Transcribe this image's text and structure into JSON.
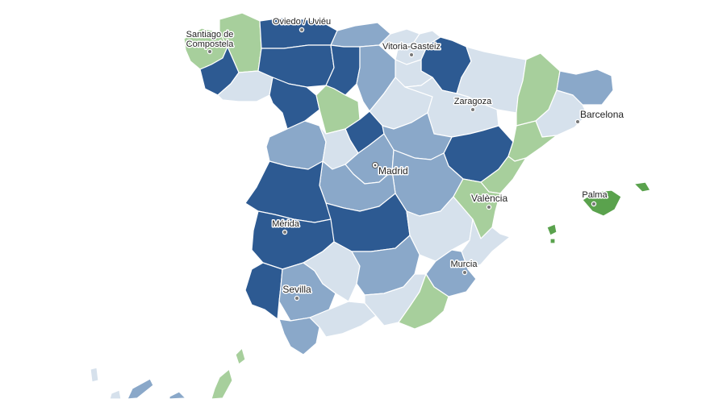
{
  "map": {
    "legend_colors": {
      "dark_blue": "#2d5a92",
      "mid_blue": "#8aa8c9",
      "light_blue": "#d6e1ec",
      "light_green": "#a7cf9c",
      "dark_green": "#5aa24d"
    },
    "cities": [
      {
        "name": "Oviedo / Uviéu",
        "icon": "city-dot-icon"
      },
      {
        "name": "Santiago de",
        "icon": "city-dot-icon"
      },
      {
        "name": "Compostela",
        "icon": ""
      },
      {
        "name": "Vitoria-Gasteiz",
        "icon": "city-dot-icon"
      },
      {
        "name": "Zaragoza",
        "icon": "city-dot-icon"
      },
      {
        "name": "Barcelona",
        "icon": "city-dot-icon"
      },
      {
        "name": "Madrid",
        "icon": "capital-dot-icon"
      },
      {
        "name": "València",
        "icon": "city-dot-icon"
      },
      {
        "name": "Palma",
        "icon": "city-dot-icon"
      },
      {
        "name": "Mérida",
        "icon": "city-dot-icon"
      },
      {
        "name": "Murcia",
        "icon": "city-dot-icon"
      },
      {
        "name": "Sevilla",
        "icon": "city-dot-icon"
      }
    ]
  }
}
